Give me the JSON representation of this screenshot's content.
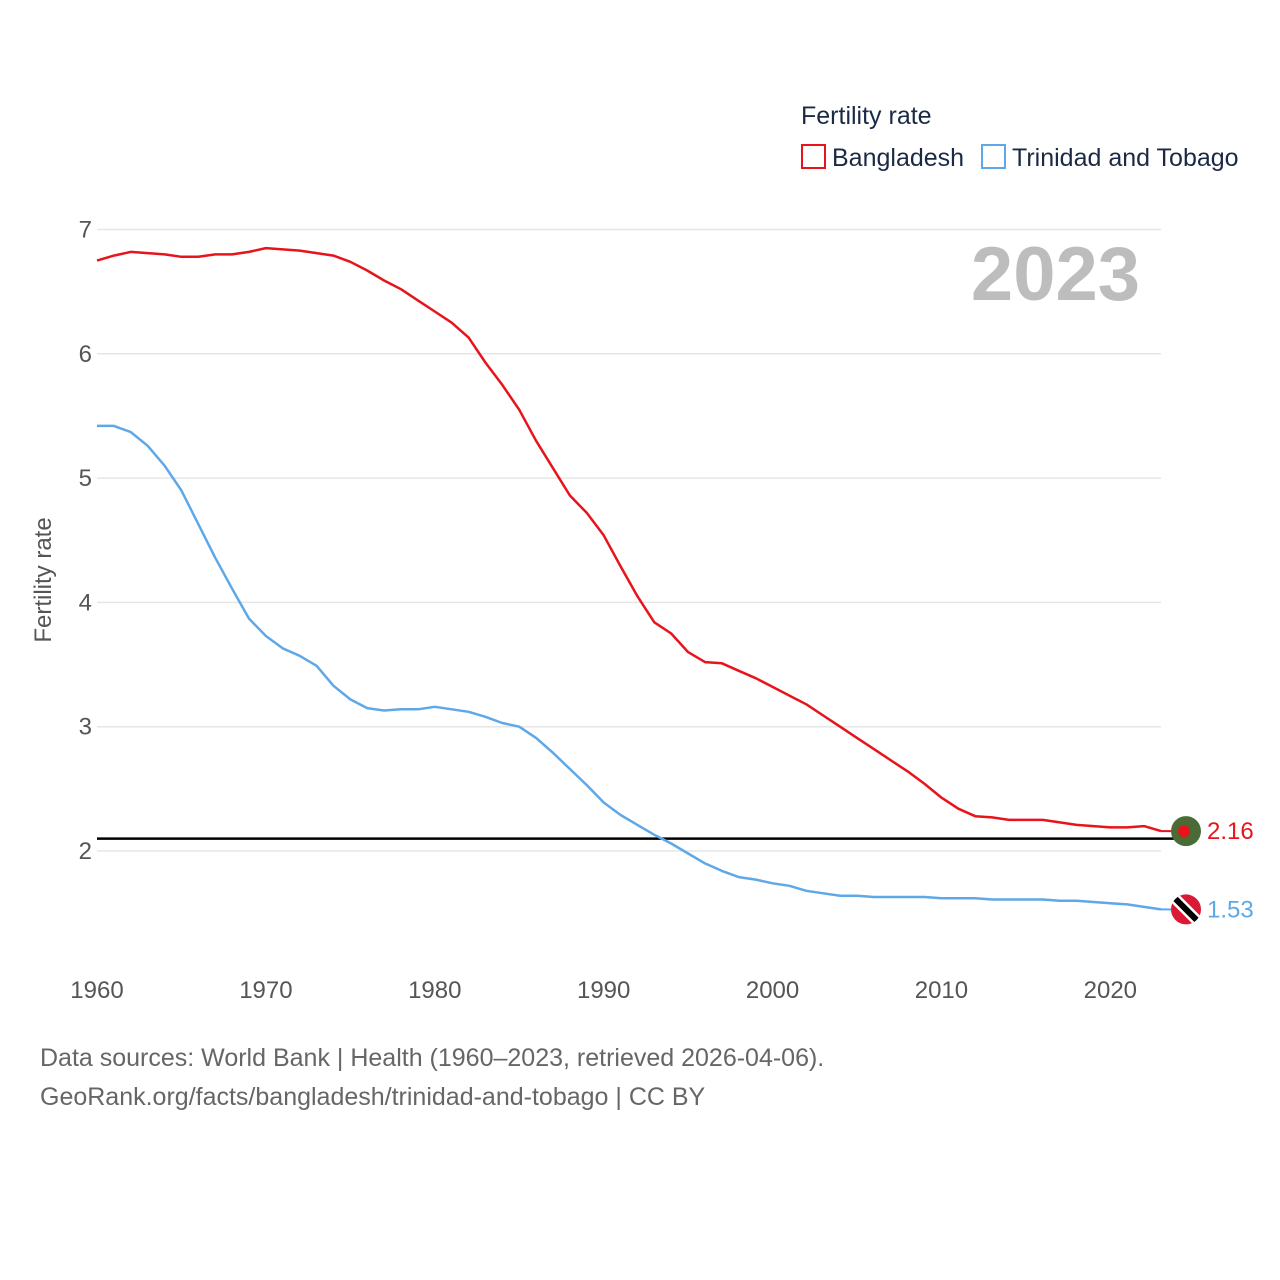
{
  "chart_data": {
    "type": "line",
    "legend_title": "Fertility rate",
    "legend_placement": "top-right",
    "ylabel": "Fertility rate",
    "xlabel": "",
    "xlim": [
      1960,
      2023
    ],
    "ylim": [
      1.35,
      7.0
    ],
    "x_ticks": [
      1960,
      1970,
      1980,
      1990,
      2000,
      2010,
      2020
    ],
    "y_ticks": [
      2,
      3,
      4,
      5,
      6,
      7
    ],
    "grid": true,
    "year_label": "2023",
    "reference_line": {
      "y": 2.1,
      "color": "#000000"
    },
    "series": [
      {
        "name": "Bangladesh",
        "color": "#e8141c",
        "end_label": "2.16",
        "flag_colors": [
          "#4a6b35",
          "#e8141c"
        ],
        "x": [
          1960,
          1961,
          1962,
          1963,
          1964,
          1965,
          1966,
          1967,
          1968,
          1969,
          1970,
          1971,
          1972,
          1973,
          1974,
          1975,
          1976,
          1977,
          1978,
          1979,
          1980,
          1981,
          1982,
          1983,
          1984,
          1985,
          1986,
          1987,
          1988,
          1989,
          1990,
          1991,
          1992,
          1993,
          1994,
          1995,
          1996,
          1997,
          1998,
          1999,
          2000,
          2001,
          2002,
          2003,
          2004,
          2005,
          2006,
          2007,
          2008,
          2009,
          2010,
          2011,
          2012,
          2013,
          2014,
          2015,
          2016,
          2017,
          2018,
          2019,
          2020,
          2021,
          2022,
          2023
        ],
        "values": [
          6.75,
          6.79,
          6.82,
          6.81,
          6.8,
          6.78,
          6.78,
          6.8,
          6.8,
          6.82,
          6.85,
          6.84,
          6.83,
          6.81,
          6.79,
          6.74,
          6.67,
          6.59,
          6.52,
          6.43,
          6.34,
          6.25,
          6.13,
          5.93,
          5.75,
          5.55,
          5.3,
          5.08,
          4.86,
          4.72,
          4.54,
          4.29,
          4.05,
          3.84,
          3.75,
          3.6,
          3.52,
          3.51,
          3.45,
          3.39,
          3.32,
          3.25,
          3.18,
          3.09,
          3.0,
          2.91,
          2.82,
          2.73,
          2.64,
          2.54,
          2.43,
          2.34,
          2.28,
          2.27,
          2.25,
          2.25,
          2.25,
          2.23,
          2.21,
          2.2,
          2.19,
          2.19,
          2.2,
          2.16
        ]
      },
      {
        "name": "Trinidad and Tobago",
        "color": "#5fa8e8",
        "end_label": "1.53",
        "flag_colors": [
          "#da1a35",
          "#ffffff",
          "#000000"
        ],
        "x": [
          1960,
          1961,
          1962,
          1963,
          1964,
          1965,
          1966,
          1967,
          1968,
          1969,
          1970,
          1971,
          1972,
          1973,
          1974,
          1975,
          1976,
          1977,
          1978,
          1979,
          1980,
          1981,
          1982,
          1983,
          1984,
          1985,
          1986,
          1987,
          1988,
          1989,
          1990,
          1991,
          1992,
          1993,
          1994,
          1995,
          1996,
          1997,
          1998,
          1999,
          2000,
          2001,
          2002,
          2003,
          2004,
          2005,
          2006,
          2007,
          2008,
          2009,
          2010,
          2011,
          2012,
          2013,
          2014,
          2015,
          2016,
          2017,
          2018,
          2019,
          2020,
          2021,
          2022,
          2023
        ],
        "values": [
          5.42,
          5.42,
          5.37,
          5.26,
          5.1,
          4.9,
          4.63,
          4.36,
          4.11,
          3.87,
          3.73,
          3.63,
          3.57,
          3.49,
          3.33,
          3.22,
          3.15,
          3.13,
          3.14,
          3.14,
          3.16,
          3.14,
          3.12,
          3.08,
          3.03,
          3.0,
          2.91,
          2.79,
          2.66,
          2.53,
          2.39,
          2.29,
          2.21,
          2.13,
          2.06,
          1.98,
          1.9,
          1.84,
          1.79,
          1.77,
          1.74,
          1.72,
          1.68,
          1.66,
          1.64,
          1.64,
          1.63,
          1.63,
          1.63,
          1.63,
          1.62,
          1.62,
          1.62,
          1.61,
          1.61,
          1.61,
          1.61,
          1.6,
          1.6,
          1.59,
          1.58,
          1.57,
          1.55,
          1.53
        ]
      }
    ]
  },
  "source": {
    "line1": "Data sources: World Bank | Health (1960–2023, retrieved 2026-04-06).",
    "line2": "GeoRank.org/facts/bangladesh/trinidad-and-tobago | CC BY"
  }
}
